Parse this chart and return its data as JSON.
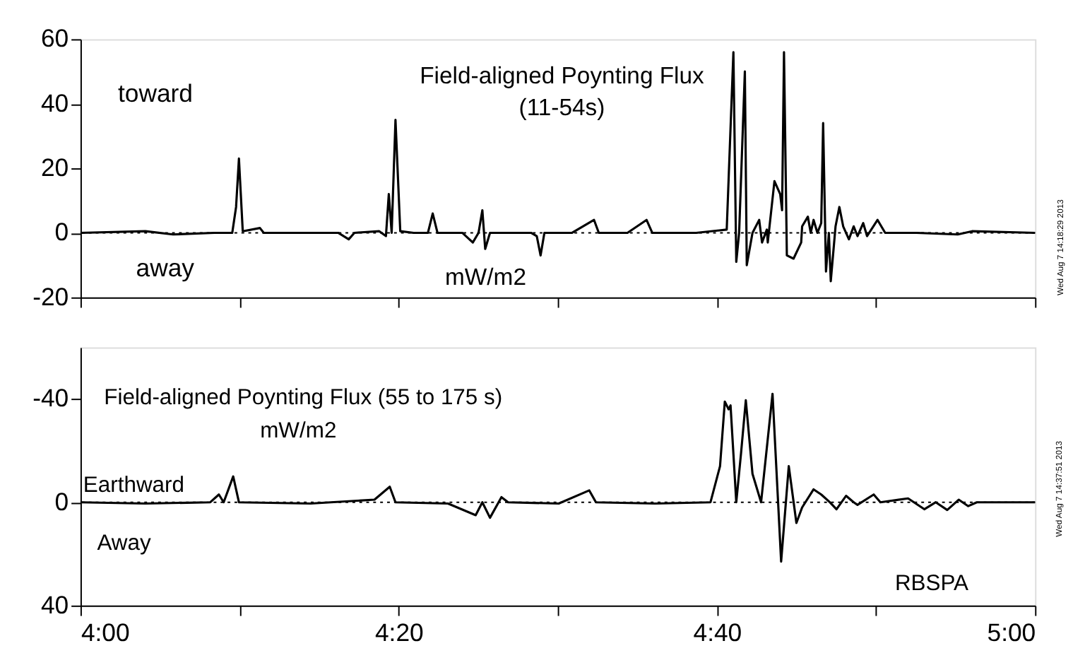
{
  "chart_data": [
    {
      "type": "line",
      "title": "Field-aligned Poynting Flux",
      "subtitle": "(11-54s)",
      "annotations": [
        "toward",
        "away",
        "mW/m2",
        "Wed Aug 7 14:18:29 2013"
      ],
      "xlim": [
        4,
        5
      ],
      "xticks": [
        {
          "value": 4,
          "label": null
        },
        {
          "value": 4.1667,
          "label": null
        },
        {
          "value": 4.3333,
          "label": null
        },
        {
          "value": 4.5,
          "label": null
        },
        {
          "value": 4.6667,
          "label": null
        },
        {
          "value": 4.8333,
          "label": null
        },
        {
          "value": 5,
          "label": null
        }
      ],
      "ylim": [
        -20,
        60
      ],
      "yticks": [
        -20,
        0,
        20,
        40,
        60
      ],
      "tick_labels": "y",
      "grid": false,
      "legend": false,
      "marker": "none",
      "line_style": "solid",
      "ref_lines": [
        {
          "axis": "y",
          "value": 0,
          "label": null,
          "color": "#000000",
          "line_style": "dotted"
        }
      ],
      "series": [
        {
          "color": "#000000",
          "x": [
            4.0,
            4.068,
            4.097,
            4.14,
            4.159,
            4.163,
            4.166,
            4.17,
            4.188,
            4.192,
            4.212,
            4.27,
            4.281,
            4.287,
            4.313,
            4.32,
            4.323,
            4.326,
            4.33,
            4.335,
            4.349,
            4.364,
            4.369,
            4.374,
            4.4,
            4.411,
            4.417,
            4.421,
            4.424,
            4.429,
            4.457,
            4.472,
            4.478,
            4.482,
            4.486,
            4.515,
            4.538,
            4.543,
            4.573,
            4.593,
            4.599,
            4.618,
            4.645,
            4.677,
            4.684,
            4.687,
            4.69,
            4.696,
            4.698,
            4.704,
            4.711,
            4.714,
            4.719,
            4.72,
            4.727,
            4.733,
            4.735,
            4.737,
            4.74,
            4.747,
            4.755,
            4.756,
            4.762,
            4.765,
            4.768,
            4.772,
            4.776,
            4.778,
            4.781,
            4.784,
            4.786,
            4.791,
            4.795,
            4.799,
            4.805,
            4.81,
            4.814,
            4.82,
            4.824,
            4.835,
            4.843,
            4.876,
            4.919,
            4.934,
            5.0
          ],
          "values": [
            0,
            0.5,
            -0.5,
            0,
            0,
            8,
            23,
            0.5,
            1.5,
            0,
            0,
            0,
            -2,
            0,
            0.5,
            -1,
            12,
            0,
            35,
            0.5,
            0,
            0,
            6,
            0,
            0,
            -3,
            0,
            7,
            -5,
            0,
            0,
            0,
            -1,
            -7,
            0,
            0,
            4,
            0,
            0,
            4,
            0,
            0,
            0,
            1,
            56,
            -9,
            0,
            50,
            -10,
            0,
            4,
            -3,
            1,
            -3,
            16,
            12,
            7,
            56,
            -7,
            -8,
            -3,
            2,
            5,
            0,
            4,
            0,
            3,
            34,
            -12,
            0,
            -15,
            2,
            8,
            2,
            -2,
            2,
            -1,
            3,
            -1,
            4,
            0,
            0,
            -0.5,
            0.5,
            0
          ]
        }
      ]
    },
    {
      "type": "line",
      "title": "Field-aligned Poynting Flux (55 to 175 s)",
      "annotations": [
        "mW/m2",
        "Earthward",
        "Away",
        "RBSPA",
        "Wed Aug 7 14:37:51 2013"
      ],
      "xlim": [
        4,
        5
      ],
      "xticks": [
        {
          "value": 4,
          "label": "4:00"
        },
        {
          "value": 4.1667,
          "label": null
        },
        {
          "value": 4.3333,
          "label": "4:20"
        },
        {
          "value": 4.5,
          "label": null
        },
        {
          "value": 4.6667,
          "label": "4:40"
        },
        {
          "value": 4.8333,
          "label": null
        },
        {
          "value": 5,
          "label": "5:00"
        }
      ],
      "ylim": [
        40,
        -60
      ],
      "yticks": [
        -40,
        0,
        40
      ],
      "grid": false,
      "legend": false,
      "marker": "none",
      "line_style": "solid",
      "ref_lines": [
        {
          "axis": "y",
          "value": 0,
          "label": null,
          "color": "#000000",
          "line_style": "dotted"
        }
      ],
      "series": [
        {
          "color": "#000000",
          "x": [
            4.0,
            4.068,
            4.136,
            4.145,
            4.15,
            4.16,
            4.166,
            4.241,
            4.308,
            4.324,
            4.33,
            4.385,
            4.414,
            4.421,
            4.429,
            4.441,
            4.448,
            4.501,
            4.533,
            4.54,
            4.602,
            4.66,
            4.67,
            4.675,
            4.679,
            4.681,
            4.687,
            4.692,
            4.697,
            4.704,
            4.713,
            4.725,
            4.734,
            4.742,
            4.75,
            4.756,
            4.768,
            4.776,
            4.785,
            4.792,
            4.802,
            4.81,
            4.814,
            4.831,
            4.838,
            4.867,
            4.884,
            4.896,
            4.908,
            4.92,
            4.93,
            4.939,
            5.0
          ],
          "values": [
            0,
            0.5,
            0,
            -3,
            0,
            -10,
            0,
            0.5,
            -1,
            -6,
            0,
            0.5,
            5,
            0,
            6,
            -2,
            0,
            0.5,
            -4.6,
            0,
            0.5,
            0,
            -14,
            -39,
            -36,
            -37.5,
            0,
            -19,
            -39.5,
            -11,
            0,
            -42,
            23,
            -14,
            8,
            2,
            -5,
            -3,
            0,
            2.7,
            -2.5,
            0,
            1,
            -3,
            0,
            -1.5,
            2.7,
            0,
            3,
            -1,
            1.5,
            0,
            0
          ]
        }
      ]
    }
  ]
}
